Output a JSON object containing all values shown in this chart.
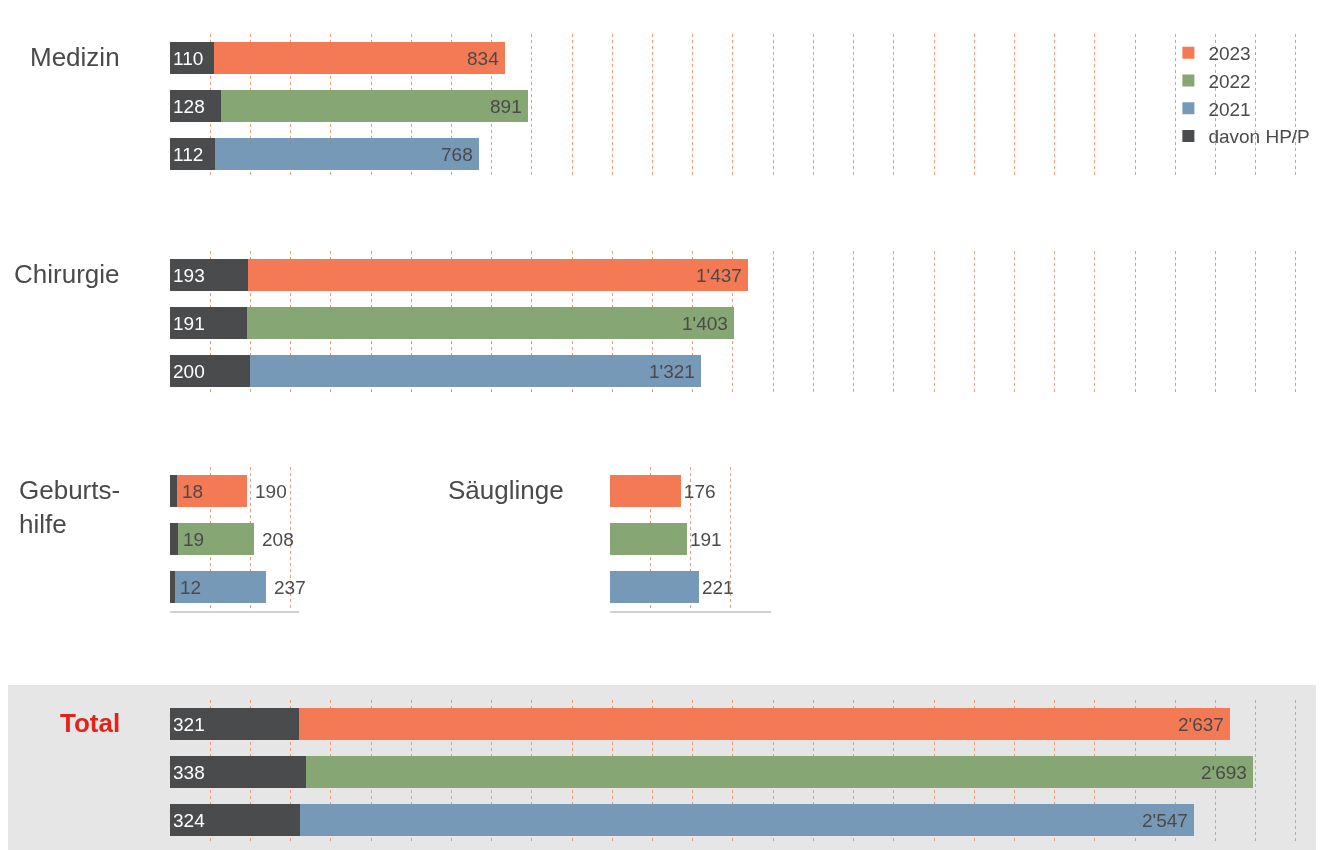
{
  "chart_data": [
    {
      "type": "bar",
      "title": "Medizin",
      "orientation": "horizontal",
      "stacked": true,
      "categories": [
        null,
        null,
        null
      ],
      "xlim": [
        0,
        2850
      ],
      "xticks": [
        {
          "value": 100,
          "label": null
        },
        {
          "value": 200,
          "label": null
        },
        {
          "value": 300,
          "label": null
        },
        {
          "value": 400,
          "label": null
        },
        {
          "value": 500,
          "label": null
        },
        {
          "value": 600,
          "label": null
        },
        {
          "value": 700,
          "label": null
        },
        {
          "value": 800,
          "label": null
        },
        {
          "value": 900,
          "label": null
        },
        {
          "value": 1000,
          "label": null
        },
        {
          "value": 1100,
          "label": null
        },
        {
          "value": 1200,
          "label": null
        },
        {
          "value": 1300,
          "label": null
        },
        {
          "value": 1400,
          "label": null
        },
        {
          "value": 1500,
          "label": null
        },
        {
          "value": 1600,
          "label": null
        },
        {
          "value": 1700,
          "label": null
        },
        {
          "value": 1800,
          "label": null
        },
        {
          "value": 1900,
          "label": null
        },
        {
          "value": 2000,
          "label": null
        },
        {
          "value": 2100,
          "label": null
        },
        {
          "value": 2200,
          "label": null
        },
        {
          "value": 2300,
          "label": null
        },
        {
          "value": 2400,
          "label": null
        },
        {
          "value": 2500,
          "label": null
        },
        {
          "value": 2600,
          "label": null
        },
        {
          "value": 2700,
          "label": null
        },
        {
          "value": 2800,
          "label": null
        }
      ],
      "grid": "x",
      "legend": "top right",
      "totals": [
        "834",
        "891",
        "768"
      ],
      "series": [
        {
          "name": "davon HP/P",
          "color": "#4a4b4d",
          "values": [
            110,
            128,
            112
          ],
          "value_labels": [
            "110",
            "128",
            "112"
          ]
        },
        {
          "name": "2023",
          "color": "#f47a55",
          "values": [
            724,
            null,
            null
          ]
        },
        {
          "name": "2022",
          "color": "#86a673",
          "values": [
            null,
            763,
            null
          ]
        },
        {
          "name": "2021",
          "color": "#7799b8",
          "values": [
            null,
            null,
            656
          ]
        }
      ]
    },
    {
      "type": "bar",
      "title": "Chirurgie",
      "orientation": "horizontal",
      "stacked": true,
      "categories": [
        null,
        null,
        null
      ],
      "xlim": [
        0,
        2850
      ],
      "xticks": [
        {
          "value": 100,
          "label": null
        },
        {
          "value": 200,
          "label": null
        },
        {
          "value": 300,
          "label": null
        },
        {
          "value": 400,
          "label": null
        },
        {
          "value": 500,
          "label": null
        },
        {
          "value": 600,
          "label": null
        },
        {
          "value": 700,
          "label": null
        },
        {
          "value": 800,
          "label": null
        },
        {
          "value": 900,
          "label": null
        },
        {
          "value": 1000,
          "label": null
        },
        {
          "value": 1100,
          "label": null
        },
        {
          "value": 1200,
          "label": null
        },
        {
          "value": 1300,
          "label": null
        },
        {
          "value": 1400,
          "label": null
        },
        {
          "value": 1500,
          "label": null
        },
        {
          "value": 1600,
          "label": null
        },
        {
          "value": 1700,
          "label": null
        },
        {
          "value": 1800,
          "label": null
        },
        {
          "value": 1900,
          "label": null
        },
        {
          "value": 2000,
          "label": null
        },
        {
          "value": 2100,
          "label": null
        },
        {
          "value": 2200,
          "label": null
        },
        {
          "value": 2300,
          "label": null
        },
        {
          "value": 2400,
          "label": null
        },
        {
          "value": 2500,
          "label": null
        },
        {
          "value": 2600,
          "label": null
        },
        {
          "value": 2700,
          "label": null
        },
        {
          "value": 2800,
          "label": null
        }
      ],
      "grid": "x",
      "totals": [
        "1'437",
        "1'403",
        "1'321"
      ],
      "series": [
        {
          "color": "#4a4b4d",
          "values": [
            193,
            191,
            200
          ],
          "value_labels": [
            "193",
            "191",
            "200"
          ]
        },
        {
          "colors": [
            "#f47a55",
            "#86a673",
            "#7799b8"
          ],
          "values": [
            1244,
            1212,
            1121
          ]
        }
      ]
    },
    {
      "type": "bar",
      "title": "Geburts-\nhilfe",
      "orientation": "horizontal",
      "stacked": true,
      "categories": [
        null,
        null,
        null
      ],
      "xlim": [
        0,
        320
      ],
      "xticks": [
        {
          "value": 100,
          "label": null
        },
        {
          "value": 200,
          "label": null
        },
        {
          "value": 300,
          "label": null
        }
      ],
      "grid": "x",
      "totals": [
        "190",
        "208",
        "237"
      ],
      "series": [
        {
          "color": "#4a4b4d",
          "values": [
            18,
            19,
            12
          ],
          "value_labels": [
            "18",
            "19",
            "12"
          ]
        },
        {
          "colors": [
            "#f47a55",
            "#86a673",
            "#7799b8"
          ],
          "values": [
            172,
            189,
            225
          ]
        }
      ]
    },
    {
      "type": "bar",
      "title": "Säuglinge",
      "orientation": "horizontal",
      "categories": [
        null,
        null,
        null
      ],
      "xlim": [
        0,
        400
      ],
      "xticks": [
        {
          "value": 100,
          "label": null
        },
        {
          "value": 200,
          "label": null
        },
        {
          "value": 300,
          "label": null
        }
      ],
      "grid": "x",
      "data_labels": true,
      "series": [
        {
          "colors": [
            "#f47a55",
            "#86a673",
            "#7799b8"
          ],
          "values": [
            176,
            191,
            221
          ]
        }
      ]
    },
    {
      "type": "bar",
      "title": "Total",
      "orientation": "horizontal",
      "stacked": true,
      "categories": [
        null,
        null,
        null
      ],
      "xlim": [
        0,
        2850
      ],
      "xticks": [
        {
          "value": 100,
          "label": null
        },
        {
          "value": 200,
          "label": null
        },
        {
          "value": 300,
          "label": null
        },
        {
          "value": 400,
          "label": null
        },
        {
          "value": 500,
          "label": null
        },
        {
          "value": 600,
          "label": null
        },
        {
          "value": 700,
          "label": null
        },
        {
          "value": 800,
          "label": null
        },
        {
          "value": 900,
          "label": null
        },
        {
          "value": 1000,
          "label": null
        },
        {
          "value": 1100,
          "label": null
        },
        {
          "value": 1200,
          "label": null
        },
        {
          "value": 1300,
          "label": null
        },
        {
          "value": 1400,
          "label": null
        },
        {
          "value": 1500,
          "label": null
        },
        {
          "value": 1600,
          "label": null
        },
        {
          "value": 1700,
          "label": null
        },
        {
          "value": 1800,
          "label": null
        },
        {
          "value": 1900,
          "label": null
        },
        {
          "value": 2000,
          "label": null
        },
        {
          "value": 2100,
          "label": null
        },
        {
          "value": 2200,
          "label": null
        },
        {
          "value": 2300,
          "label": null
        },
        {
          "value": 2400,
          "label": null
        },
        {
          "value": 2500,
          "label": null
        },
        {
          "value": 2600,
          "label": null
        },
        {
          "value": 2700,
          "label": null
        },
        {
          "value": 2800,
          "label": null
        }
      ],
      "grid": "x",
      "totals": [
        "2'637",
        "2'693",
        "2'547"
      ],
      "series": [
        {
          "color": "#4a4b4d",
          "values": [
            321,
            338,
            324
          ],
          "value_labels": [
            "321",
            "338",
            "324"
          ]
        },
        {
          "colors": [
            "#f47a55",
            "#86a673",
            "#7799b8"
          ],
          "values": [
            2316,
            2355,
            2223
          ]
        }
      ]
    }
  ]
}
